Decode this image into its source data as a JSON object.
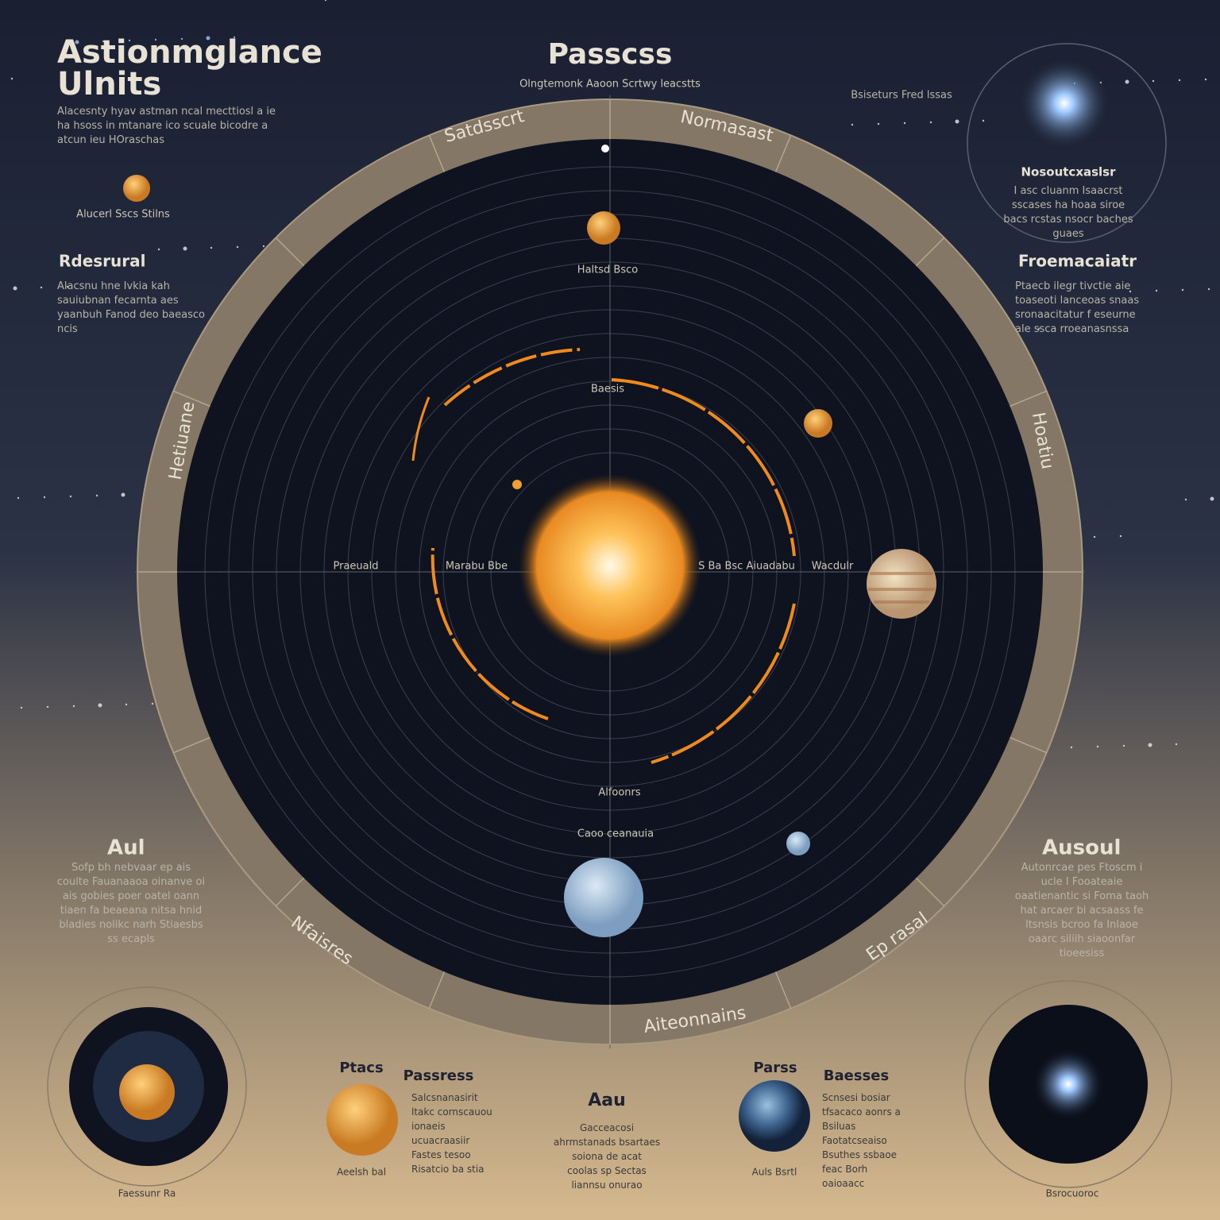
{
  "header": {
    "title_line1": "Astionmglance",
    "title_line2": "Ulnits",
    "intro": "Alacesnty hyav astman ncal mecttiosl a ie ha hsoss in mtanare ico scuale bicodre a atcun ieu HOraschas",
    "center_title": "Passcss",
    "center_subtitle": "Olngtemonk Aaoon Scrtwy leacstts"
  },
  "ring_labels": {
    "top_left": "Satdsscrt",
    "top_right": "Normasast",
    "bottom": "Aiteonnains",
    "left": "Hetiuane",
    "right": "Hoatiu",
    "lower_left": "Nfaisres",
    "lower_right": "Ep rasal"
  },
  "left_panel": {
    "planet_caption": "Alucerl Sscs Stilns",
    "heading": "Rdesrural",
    "body": "Alacsnu hne Ivkia kah sauiubnan fecarnta aes yaanbuh Fanod deo baeasco ncis"
  },
  "right_panel": {
    "star_note": "Bsiseturs Fred lssas",
    "star_heading": "Nosoutcxaslsr",
    "star_body": "I asc cluanm Isaacrst sscases ha hoaa siroe bacs rcstas nsocr baches guaes",
    "heading": "Froemacaiatr",
    "body": "Ptaecb ilegr tivctie aie toaseoti lanceoas snaas sronaacitatur f eseurne ale ssca rroeanasnssa"
  },
  "lower_left": {
    "heading": "Aul",
    "body": "Sofp bh nebvaar ep ais coulte Fauanaaoa oinanve oi ais gobies poer oatel oann tiaen fa beaeana nitsa hnid bladies nolikc narh Stiaesbs ss ecapls"
  },
  "lower_right": {
    "heading": "Ausoul",
    "body": "Autonrcae pes Ftoscm i ucle I Fooateaie oaatienantic si Foma taoh hat arcaer bi acsaass fe ltsnsis bcroo fa Inlaoe oaarc siliih siaoonfar tioeesiss"
  },
  "center_labels": {
    "top": "Haltsd Bsco",
    "mid": "Baesis",
    "left": "Praeuald",
    "inner_left": "Marabu Bbe",
    "inner_right": "S Ba Bsc Aiuadabu",
    "right": "Wacdulr",
    "lower": "Alfoonrs",
    "blue_caption": "Caoo ceanauia"
  },
  "bottom": {
    "p1_title": "Ptacs",
    "p1_text": "Passress",
    "p1_body": "Salcsnanasirit ltakc cornscauou ionaeis ucuacraasiir Fastes tesoo Risatcio ba stia",
    "p1_caption": "Aeelsh bal",
    "center_title": "Aau",
    "center_body": "Gacceacosi ahrmstanads bsartaes soiona de acat coolas sp Sectas liannsu onurao",
    "p2_title": "Parss",
    "p2_text": "Baesses",
    "p2_body": "Scnsesi bosiar tfsacaco aonrs a Bsiluas Faotatcseaiso Bsuthes ssbaoe feac Borh oaioaacc",
    "p2_caption": "Auls Bsrtl",
    "left_caption": "Faessunr Ra",
    "right_caption": "Bsrocuoroc"
  }
}
